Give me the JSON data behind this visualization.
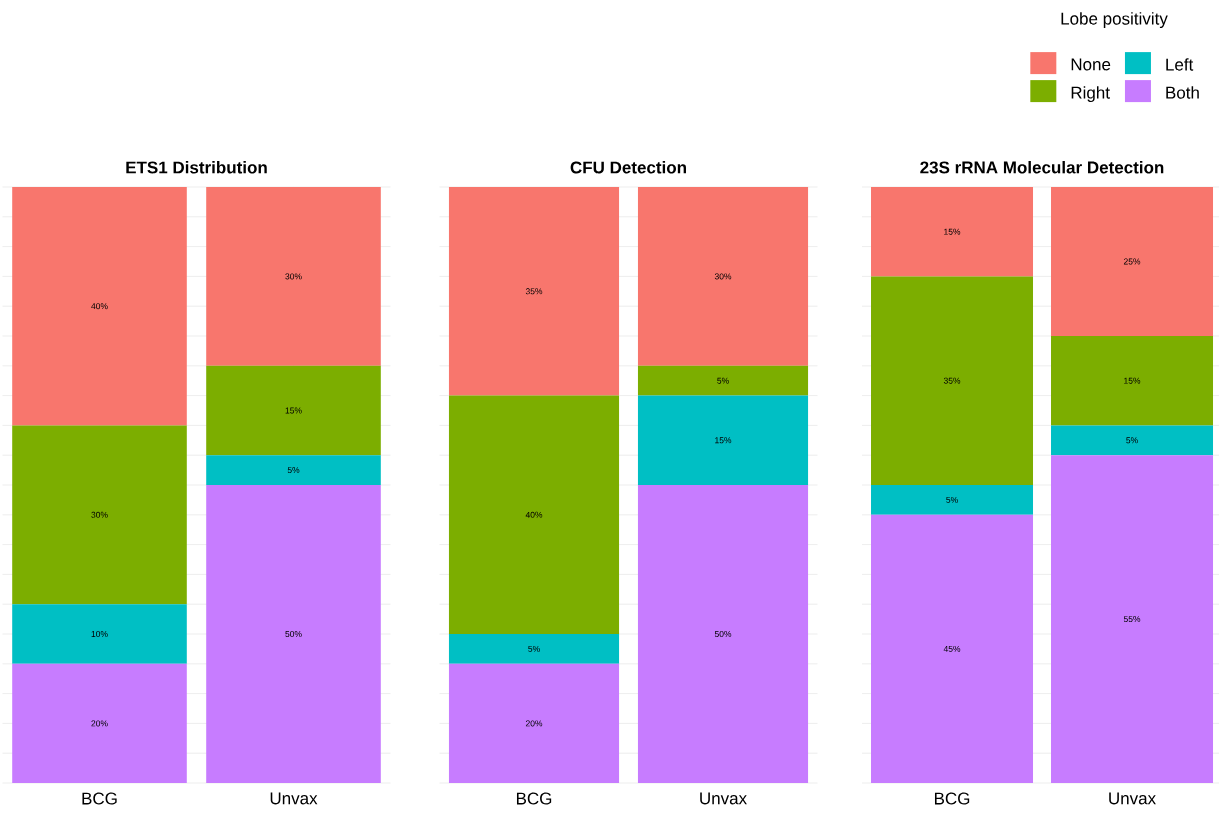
{
  "chart_data": [
    {
      "type": "bar",
      "title": "ETS1 Distribution",
      "categories": [
        "BCG",
        "Unvax"
      ],
      "stacked": true,
      "ylim": [
        0,
        100
      ],
      "grid": true,
      "tick_labels": "x",
      "series": [
        {
          "color": "#c77cff",
          "values": [
            20,
            50
          ],
          "value_labels": [
            "20%",
            "50%"
          ]
        },
        {
          "color": "#00bfc4",
          "values": [
            10,
            5
          ],
          "value_labels": [
            "10%",
            "5%"
          ]
        },
        {
          "color": "#7cae00",
          "values": [
            30,
            15
          ],
          "value_labels": [
            "30%",
            "15%"
          ]
        },
        {
          "color": "#f8766d",
          "values": [
            40,
            30
          ],
          "value_labels": [
            "40%",
            "30%"
          ]
        }
      ]
    },
    {
      "type": "bar",
      "title": "CFU Detection",
      "categories": [
        "BCG",
        "Unvax"
      ],
      "stacked": true,
      "ylim": [
        0,
        100
      ],
      "grid": true,
      "tick_labels": "x",
      "series": [
        {
          "color": "#c77cff",
          "values": [
            20,
            50
          ],
          "value_labels": [
            "20%",
            "50%"
          ]
        },
        {
          "color": "#00bfc4",
          "values": [
            5,
            15
          ],
          "value_labels": [
            "5%",
            "15%"
          ]
        },
        {
          "color": "#7cae00",
          "values": [
            40,
            5
          ],
          "value_labels": [
            "40%",
            "5%"
          ]
        },
        {
          "color": "#f8766d",
          "values": [
            35,
            30
          ],
          "value_labels": [
            "35%",
            "30%"
          ]
        }
      ]
    },
    {
      "type": "bar",
      "title": "23S rRNA Molecular Detection",
      "categories": [
        "BCG",
        "Unvax"
      ],
      "stacked": true,
      "ylim": [
        0,
        100
      ],
      "grid": true,
      "tick_labels": "x",
      "legend": "top right",
      "legend_title": "Lobe positivity",
      "series": [
        {
          "name": "Both",
          "color": "#c77cff",
          "values": [
            45,
            55
          ],
          "value_labels": [
            "45%",
            "55%"
          ]
        },
        {
          "name": "Left",
          "color": "#00bfc4",
          "values": [
            5,
            5
          ],
          "value_labels": [
            "5%",
            "5%"
          ]
        },
        {
          "name": "Right",
          "color": "#7cae00",
          "values": [
            35,
            15
          ],
          "value_labels": [
            "35%",
            "15%"
          ]
        },
        {
          "name": "None",
          "color": "#f8766d",
          "values": [
            15,
            25
          ],
          "value_labels": [
            "15%",
            "25%"
          ]
        }
      ]
    }
  ]
}
